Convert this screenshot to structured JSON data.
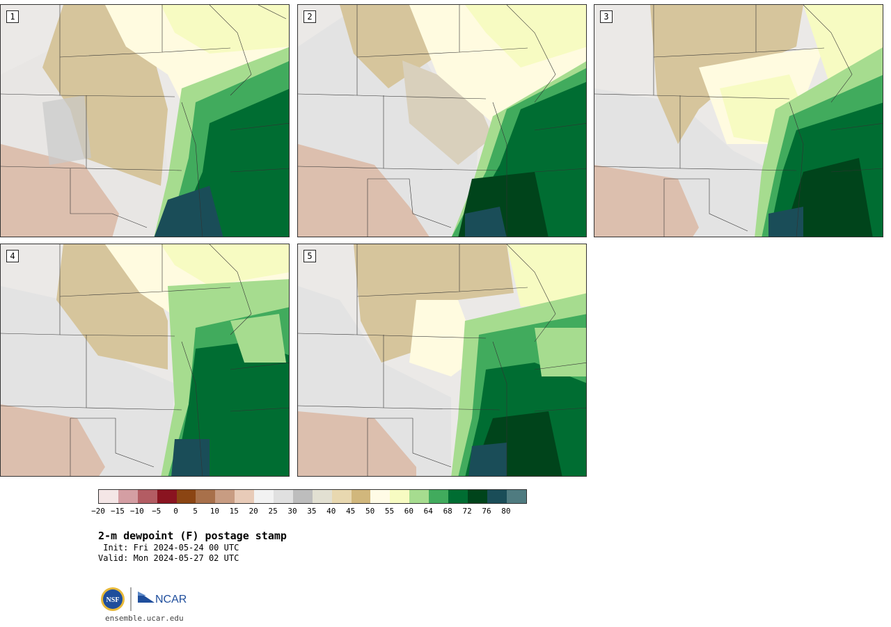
{
  "panels": [
    {
      "label": "1"
    },
    {
      "label": "2"
    },
    {
      "label": "3"
    },
    {
      "label": "4"
    },
    {
      "label": "5"
    }
  ],
  "colorbar": {
    "colors": [
      "#f4e6e6",
      "#d49ea3",
      "#b35c63",
      "#8a1420",
      "#8b4513",
      "#a8704a",
      "#c89c82",
      "#e8cbb8",
      "#f2f2f2",
      "#e0e0e0",
      "#bdbdbd",
      "#e2e0d2",
      "#e8d8b0",
      "#d1b77c",
      "#fffbe6",
      "#f7fbc2",
      "#a6dc8f",
      "#41ab5d",
      "#006d32",
      "#00441b",
      "#1a4d58",
      "#4f7b80"
    ],
    "ticks": [
      "−20",
      "−15",
      "−10",
      "−5",
      "0",
      "5",
      "10",
      "15",
      "20",
      "25",
      "30",
      "35",
      "40",
      "45",
      "50",
      "55",
      "60",
      "64",
      "68",
      "72",
      "76",
      "80"
    ]
  },
  "title": "2-m dewpoint (F) postage stamp",
  "init": " Init: Fri 2024-05-24 00 UTC",
  "valid": "Valid: Mon 2024-05-27 02 UTC",
  "logos": {
    "nsf": "NSF",
    "ncar": "NCAR"
  },
  "url": "ensemble.ucar.edu"
}
